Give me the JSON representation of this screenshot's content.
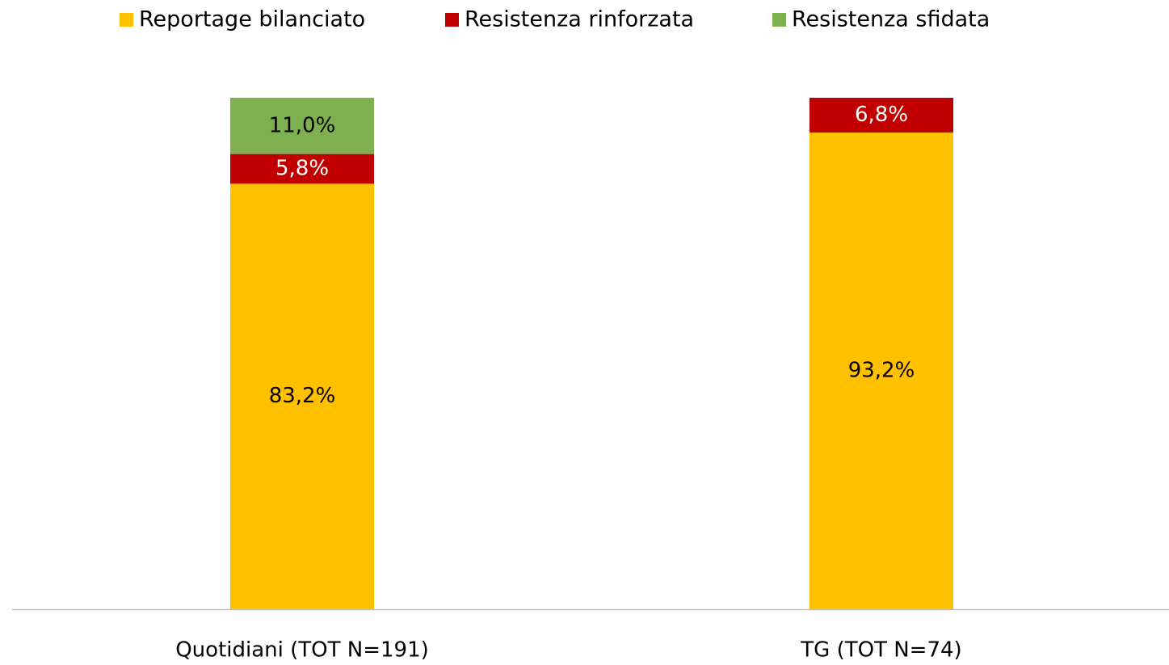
{
  "chart_data": {
    "type": "stacked_bar",
    "categories": [
      "Quotidiani (TOT N=191)",
      "TG (TOT N=74)"
    ],
    "series": [
      {
        "name": "Reportage bilanciato",
        "color": "#ffc000",
        "values": [
          83.2,
          93.2
        ],
        "value_labels": [
          "83,2%",
          "93,2%"
        ]
      },
      {
        "name": "Resistenza rinforzata",
        "color": "#c00000",
        "values": [
          5.8,
          6.8
        ],
        "value_labels": [
          "5,8%",
          "6,8%"
        ]
      },
      {
        "name": "Resistenza sfidata",
        "color": "#7fb04f",
        "values": [
          11.0,
          0
        ],
        "value_labels": [
          "11,0%",
          null
        ]
      }
    ],
    "ylim": [
      0,
      100
    ],
    "legend": "top"
  }
}
